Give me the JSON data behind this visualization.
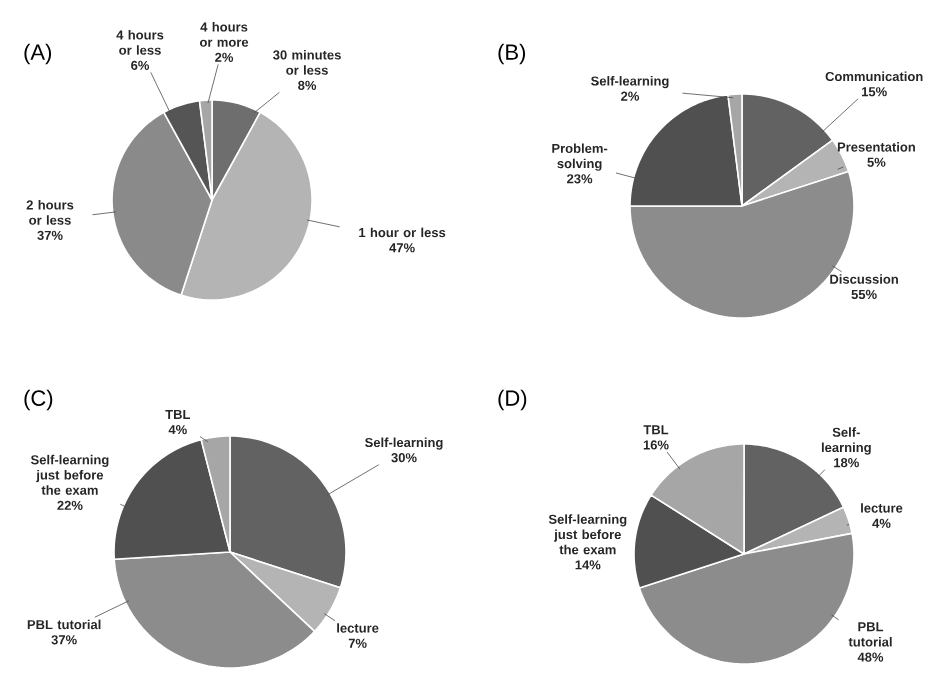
{
  "chart_data": [
    {
      "type": "pie",
      "title": "(A)",
      "categories": [
        "30 minutes or less",
        "1 hour or less",
        "2 hours or less",
        "4 hours or less",
        "4 hours or more"
      ],
      "values": [
        8,
        47,
        37,
        6,
        2
      ],
      "value_labels": [
        "8%",
        "47%",
        "37%",
        "6%",
        "2%"
      ],
      "colors": [
        "#6e6e6e",
        "#b4b4b4",
        "#8a8a8a",
        "#555555",
        "#a6a6a6"
      ]
    },
    {
      "type": "pie",
      "title": "(B)",
      "categories": [
        "Communication",
        "Presentation",
        "Discussion",
        "Problem-solving",
        "Self-learning"
      ],
      "values": [
        15,
        5,
        55,
        23,
        2
      ],
      "value_labels": [
        "15%",
        "5%",
        "55%",
        "23%",
        "2%"
      ],
      "colors": [
        "#626262",
        "#b4b4b4",
        "#8c8c8c",
        "#505050",
        "#a6a6a6"
      ]
    },
    {
      "type": "pie",
      "title": "(C)",
      "categories": [
        "Self-learning",
        "lecture",
        "PBL tutorial",
        "Self-learning just before the exam",
        "TBL"
      ],
      "values": [
        30,
        7,
        37,
        22,
        4
      ],
      "value_labels": [
        "30%",
        "7%",
        "37%",
        "22%",
        "4%"
      ],
      "colors": [
        "#626262",
        "#b4b4b4",
        "#8c8c8c",
        "#505050",
        "#a6a6a6"
      ]
    },
    {
      "type": "pie",
      "title": "(D)",
      "categories": [
        "Self-learning",
        "lecture",
        "PBL tutorial",
        "Self-learning just before the exam",
        "TBL"
      ],
      "values": [
        18,
        4,
        48,
        14,
        16
      ],
      "value_labels": [
        "18%",
        "4%",
        "48%",
        "14%",
        "16%"
      ],
      "colors": [
        "#626262",
        "#b4b4b4",
        "#8c8c8c",
        "#505050",
        "#a6a6a6"
      ]
    }
  ]
}
